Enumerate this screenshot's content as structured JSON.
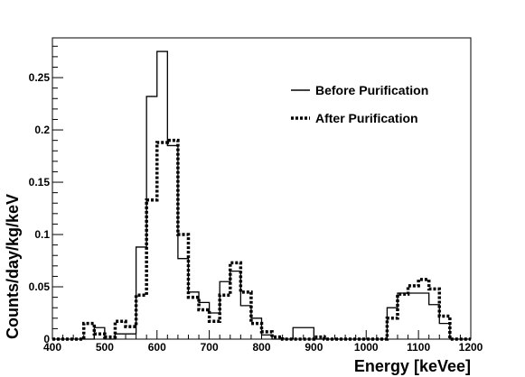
{
  "chart_data": {
    "type": "histogram",
    "xlabel": "Energy [keVee]",
    "ylabel": "Counts/day/kg/keV",
    "xlim": [
      400,
      1200
    ],
    "ylim": [
      0,
      0.288
    ],
    "xticks": [
      {
        "value": 400,
        "label": "400"
      },
      {
        "value": 500,
        "label": "500"
      },
      {
        "value": 600,
        "label": "600"
      },
      {
        "value": 700,
        "label": "700"
      },
      {
        "value": 800,
        "label": "800"
      },
      {
        "value": 900,
        "label": "900"
      },
      {
        "value": 1000,
        "label": "1000"
      },
      {
        "value": 1100,
        "label": "1100"
      },
      {
        "value": 1200,
        "label": "1200"
      }
    ],
    "yticks": [
      {
        "value": 0,
        "label": "0"
      },
      {
        "value": 0.05,
        "label": "0.05"
      },
      {
        "value": 0.1,
        "label": "0.1"
      },
      {
        "value": 0.15,
        "label": "0.15"
      },
      {
        "value": 0.2,
        "label": "0.2"
      },
      {
        "value": 0.25,
        "label": "0.25"
      }
    ],
    "legend_position": "top-right",
    "bin_edges": [
      400,
      420,
      440,
      460,
      480,
      500,
      520,
      540,
      560,
      580,
      600,
      620,
      640,
      660,
      680,
      700,
      720,
      740,
      760,
      780,
      800,
      820,
      840,
      860,
      880,
      900,
      920,
      940,
      960,
      980,
      1000,
      1020,
      1040,
      1060,
      1080,
      1100,
      1120,
      1140,
      1160,
      1180,
      1200
    ],
    "series": [
      {
        "name": "Before Purification",
        "style": "solid",
        "values": [
          0,
          0,
          0,
          0,
          0.011,
          0,
          0.005,
          0.005,
          0.088,
          0.232,
          0.275,
          0.185,
          0.077,
          0.045,
          0.035,
          0.025,
          0.055,
          0.065,
          0.032,
          0.02,
          0.004,
          0,
          0,
          0.011,
          0.011,
          0,
          0,
          0,
          0,
          0,
          0,
          0,
          0.03,
          0.044,
          0.044,
          0.044,
          0.033,
          0.015,
          0,
          0
        ]
      },
      {
        "name": "After Purification",
        "style": "dashed",
        "values": [
          0,
          0,
          0,
          0.015,
          0.005,
          0.002,
          0.017,
          0.012,
          0.042,
          0.133,
          0.188,
          0.19,
          0.1,
          0.04,
          0.028,
          0.017,
          0.042,
          0.073,
          0.045,
          0.015,
          0.007,
          0.002,
          0,
          0,
          0,
          0.002,
          0,
          0,
          0,
          0,
          0,
          0,
          0.02,
          0.043,
          0.051,
          0.057,
          0.048,
          0.022,
          0,
          0
        ]
      }
    ]
  }
}
